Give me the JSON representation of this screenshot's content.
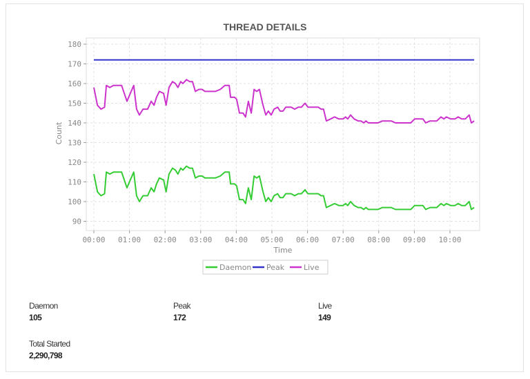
{
  "panel": {
    "title": "THREAD DETAILS"
  },
  "stats": [
    {
      "label": "Daemon",
      "value": "105"
    },
    {
      "label": "Peak",
      "value": "172"
    },
    {
      "label": "Live",
      "value": "149"
    },
    {
      "label": "Total Started",
      "value": "2,290,798"
    }
  ],
  "colors": {
    "daemon": "#33cc33",
    "peak": "#3333cc",
    "live": "#cc33cc",
    "grid": "#e0e0e0",
    "axis_text": "#888888",
    "title": "#555555"
  },
  "chart_data": {
    "type": "line",
    "title": "THREAD DETAILS",
    "xlabel": "Time",
    "ylabel": "Count",
    "x_tick_labels": [
      "00:00",
      "01:00",
      "02:00",
      "03:00",
      "04:00",
      "05:00",
      "06:00",
      "07:00",
      "08:00",
      "09:00",
      "10:00"
    ],
    "y_ticks": [
      90,
      100,
      110,
      120,
      130,
      140,
      150,
      160,
      170,
      180
    ],
    "ylim": [
      85,
      183
    ],
    "xlim_hours": [
      -0.2,
      10.9
    ],
    "grid": true,
    "legend_position": "bottom",
    "legend": [
      "Daemon",
      "Peak",
      "Live"
    ],
    "x_hours": [
      0.0,
      0.1,
      0.2,
      0.3,
      0.35,
      0.45,
      0.55,
      0.78,
      0.93,
      1.0,
      1.12,
      1.2,
      1.28,
      1.38,
      1.51,
      1.61,
      1.69,
      1.76,
      1.84,
      1.96,
      2.03,
      2.11,
      2.21,
      2.29,
      2.36,
      2.44,
      2.5,
      2.6,
      2.69,
      2.77,
      2.85,
      2.95,
      3.04,
      3.12,
      3.41,
      3.55,
      3.68,
      3.8,
      3.84,
      3.95,
      4.01,
      4.09,
      4.19,
      4.26,
      4.34,
      4.42,
      4.5,
      4.57,
      4.65,
      4.75,
      4.83,
      4.9,
      4.98,
      5.06,
      5.16,
      5.23,
      5.31,
      5.39,
      5.54,
      5.64,
      5.74,
      5.83,
      5.93,
      6.01,
      6.3,
      6.38,
      6.45,
      6.53,
      6.65,
      6.76,
      6.88,
      7.0,
      7.07,
      7.13,
      7.21,
      7.31,
      7.42,
      7.5,
      7.58,
      7.64,
      7.71,
      7.98,
      8.1,
      8.35,
      8.47,
      8.9,
      9.01,
      9.24,
      9.32,
      9.44,
      9.63,
      9.75,
      9.83,
      9.9,
      10.02,
      10.14,
      10.23,
      10.33,
      10.43,
      10.54,
      10.6,
      10.68
    ],
    "series": [
      {
        "name": "Daemon",
        "color": "#33cc33",
        "values": [
          114,
          105,
          103,
          104,
          115,
          114,
          115,
          115,
          107,
          110,
          115,
          103,
          100,
          103,
          103,
          107,
          105,
          109,
          112,
          111,
          105,
          114,
          117,
          116,
          114,
          117,
          116,
          118,
          117,
          117,
          112,
          113,
          113,
          112,
          112,
          113,
          115,
          115,
          109,
          109,
          108,
          101,
          101,
          99,
          107,
          101,
          113,
          112,
          113,
          105,
          100,
          102,
          100,
          103,
          104,
          102,
          102,
          104,
          104,
          103,
          104,
          104,
          106,
          104,
          104,
          103,
          103,
          97,
          98,
          99,
          98,
          98,
          99,
          98,
          100,
          98,
          97,
          97,
          96,
          97,
          96,
          96,
          97,
          97,
          96,
          96,
          98,
          98,
          96,
          97,
          97,
          99,
          98,
          99,
          98,
          98,
          99,
          98,
          98,
          100,
          96,
          97
        ]
      },
      {
        "name": "Peak",
        "color": "#3333cc",
        "values": [
          172,
          172,
          172,
          172,
          172,
          172,
          172,
          172,
          172,
          172,
          172,
          172,
          172,
          172,
          172,
          172,
          172,
          172,
          172,
          172,
          172,
          172,
          172,
          172,
          172,
          172,
          172,
          172,
          172,
          172,
          172,
          172,
          172,
          172,
          172,
          172,
          172,
          172,
          172,
          172,
          172,
          172,
          172,
          172,
          172,
          172,
          172,
          172,
          172,
          172,
          172,
          172,
          172,
          172,
          172,
          172,
          172,
          172,
          172,
          172,
          172,
          172,
          172,
          172,
          172,
          172,
          172,
          172,
          172,
          172,
          172,
          172,
          172,
          172,
          172,
          172,
          172,
          172,
          172,
          172,
          172,
          172,
          172,
          172,
          172,
          172,
          172,
          172,
          172,
          172,
          172,
          172,
          172,
          172,
          172,
          172,
          172,
          172,
          172,
          172,
          172,
          172
        ]
      },
      {
        "name": "Live",
        "color": "#cc33cc",
        "values": [
          158,
          149,
          147,
          148,
          159,
          158,
          159,
          159,
          151,
          154,
          159,
          147,
          144,
          147,
          147,
          151,
          149,
          153,
          156,
          155,
          149,
          158,
          161,
          160,
          158,
          161,
          160,
          162,
          161,
          161,
          156,
          157,
          157,
          156,
          156,
          157,
          159,
          159,
          153,
          153,
          152,
          145,
          145,
          143,
          151,
          145,
          157,
          156,
          157,
          149,
          144,
          146,
          144,
          147,
          148,
          146,
          146,
          148,
          148,
          147,
          148,
          148,
          150,
          148,
          148,
          147,
          147,
          141,
          142,
          143,
          142,
          142,
          143,
          142,
          144,
          142,
          141,
          141,
          140,
          141,
          140,
          140,
          141,
          141,
          140,
          140,
          142,
          142,
          140,
          141,
          141,
          143,
          142,
          143,
          142,
          142,
          143,
          142,
          142,
          144,
          140,
          141
        ]
      }
    ]
  }
}
